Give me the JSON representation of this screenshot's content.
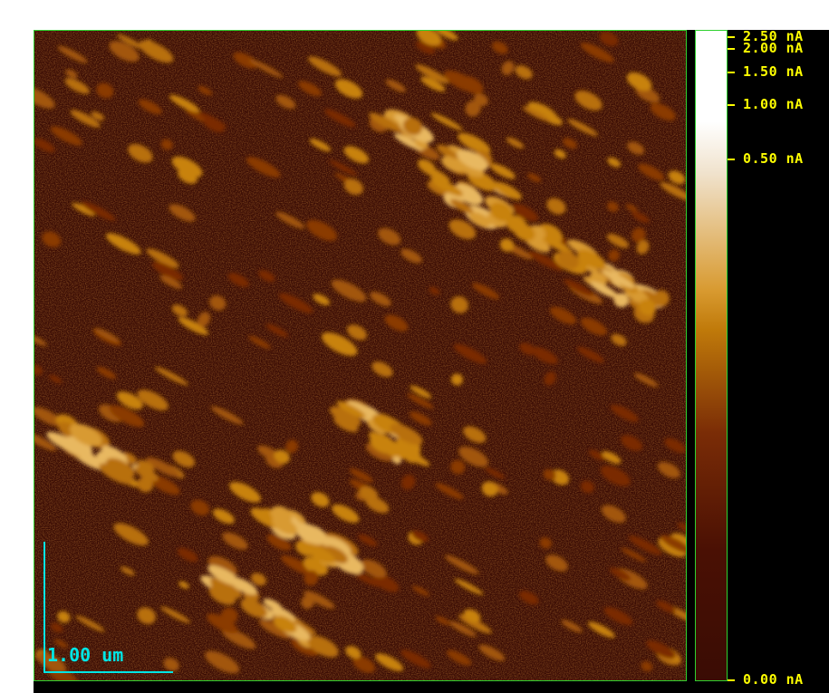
{
  "image": {
    "kind": "afm-current-map",
    "colormap": [
      "#000000",
      "#3a0c04",
      "#8a3a06",
      "#c8820e",
      "#e8b860",
      "#ffffff"
    ],
    "frame_color": "#2fd12f"
  },
  "colorbar": {
    "labels": [
      "2.50 nA",
      "2.00 nA",
      "1.50 nA",
      "1.00 nA",
      "0.50 nA",
      "0.00 nA"
    ],
    "label_color": "#ffff00",
    "gradient_stops": [
      "#ffffff",
      "#ffffff",
      "#f0e2cc",
      "#d89a30",
      "#c07a0a",
      "#7a2c06",
      "#4a1004",
      "#3a0c04"
    ]
  },
  "scalebar": {
    "label": "1.00 um",
    "color": "#00e5e5"
  }
}
